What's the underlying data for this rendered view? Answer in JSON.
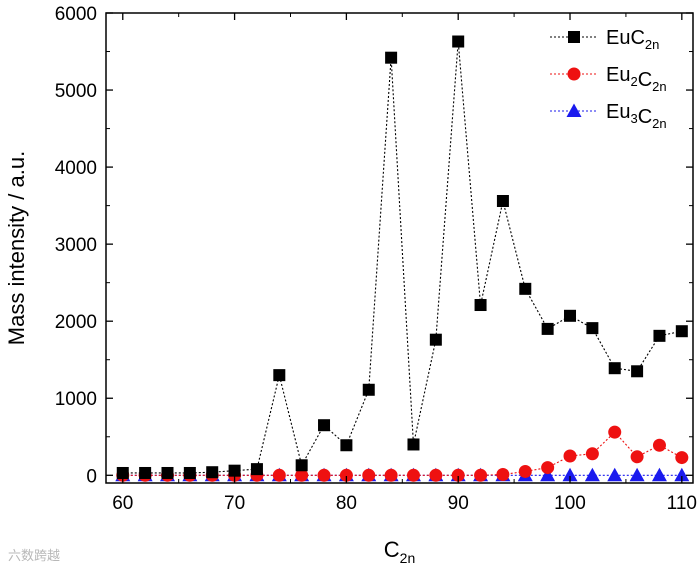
{
  "chart_data": {
    "type": "scatter",
    "xlabel": {
      "main": "C",
      "sub": "2n"
    },
    "ylabel": "Mass intensity / a.u.",
    "xlim": [
      58.5,
      111
    ],
    "ylim": [
      -100,
      6000
    ],
    "xticks": [
      60,
      70,
      80,
      90,
      100,
      110
    ],
    "yticks": [
      0,
      1000,
      2000,
      3000,
      4000,
      5000,
      6000
    ],
    "legend_position": "top-right",
    "series": [
      {
        "name": "EuC2n",
        "label_parts": [
          [
            "Eu",
            ""
          ],
          [
            "C",
            "2n"
          ]
        ],
        "marker": "square",
        "color": "#000000",
        "x": [
          60,
          62,
          64,
          66,
          68,
          70,
          72,
          74,
          76,
          78,
          80,
          82,
          84,
          86,
          88,
          90,
          92,
          94,
          96,
          98,
          100,
          102,
          104,
          106,
          108,
          110
        ],
        "values": [
          30,
          30,
          30,
          30,
          40,
          60,
          80,
          1300,
          130,
          650,
          390,
          1110,
          5420,
          400,
          1760,
          5630,
          2210,
          3560,
          2420,
          1900,
          2070,
          1910,
          1390,
          1350,
          1810,
          1870
        ]
      },
      {
        "name": "Eu2C2n",
        "label_parts": [
          [
            "Eu",
            "2"
          ],
          [
            "C",
            "2n"
          ]
        ],
        "marker": "circle",
        "color": "#ee1111",
        "x": [
          60,
          62,
          64,
          66,
          68,
          70,
          72,
          74,
          76,
          78,
          80,
          82,
          84,
          86,
          88,
          90,
          92,
          94,
          96,
          98,
          100,
          102,
          104,
          106,
          108,
          110
        ],
        "values": [
          0,
          0,
          0,
          0,
          0,
          0,
          0,
          0,
          0,
          0,
          0,
          0,
          0,
          0,
          0,
          0,
          0,
          10,
          50,
          100,
          250,
          280,
          560,
          240,
          390,
          230
        ]
      },
      {
        "name": "Eu3C2n",
        "label_parts": [
          [
            "Eu",
            "3"
          ],
          [
            "C",
            "2n"
          ]
        ],
        "marker": "triangle",
        "color": "#1a1aee",
        "x": [
          60,
          62,
          64,
          66,
          68,
          70,
          72,
          74,
          76,
          78,
          80,
          82,
          84,
          86,
          88,
          90,
          92,
          94,
          96,
          98,
          100,
          102,
          104,
          106,
          108,
          110
        ],
        "values": [
          0,
          0,
          0,
          0,
          0,
          0,
          0,
          0,
          0,
          0,
          0,
          0,
          0,
          0,
          0,
          0,
          0,
          0,
          0,
          0,
          0,
          0,
          0,
          0,
          0,
          0
        ]
      }
    ]
  },
  "watermark": "六数跨越"
}
